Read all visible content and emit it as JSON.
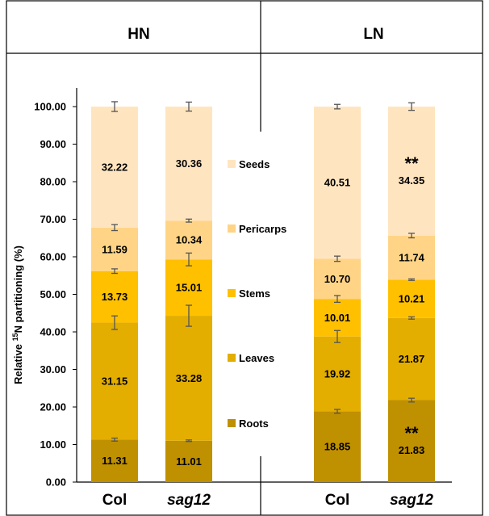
{
  "panels": [
    {
      "title": "HN",
      "categories": [
        "Col",
        "sag12"
      ]
    },
    {
      "title": "LN",
      "categories": [
        "Col",
        "sag12"
      ]
    }
  ],
  "chart_data": {
    "type": "bar",
    "stacked": true,
    "ylabel_parts": [
      "Relative ",
      "15",
      "N partitioning (%)"
    ],
    "ylim": [
      0,
      100
    ],
    "yticks": [
      "0.00",
      "10.00",
      "20.00",
      "30.00",
      "40.00",
      "50.00",
      "60.00",
      "70.00",
      "80.00",
      "90.00",
      "100.00"
    ],
    "grid": false,
    "legend_position": "center, between panels",
    "categories": [
      "HN Col",
      "HN sag12",
      "LN Col",
      "LN sag12"
    ],
    "category_labels": [
      "Col",
      "sag12",
      "Col",
      "sag12"
    ],
    "series": [
      {
        "name": "Roots",
        "color": "#BF9000",
        "values": [
          11.31,
          11.01,
          18.85,
          21.83
        ],
        "labels": [
          "11.31",
          "11.01",
          "18.85",
          "21.83"
        ],
        "errors": [
          0.4,
          0.2,
          0.5,
          0.5
        ]
      },
      {
        "name": "Leaves",
        "color": "#E3AE00",
        "values": [
          31.15,
          33.28,
          19.92,
          21.87
        ],
        "labels": [
          "31.15",
          "33.28",
          "19.92",
          "21.87"
        ],
        "errors": [
          1.8,
          2.8,
          1.6,
          0.3
        ]
      },
      {
        "name": "Stems",
        "color": "#FFC000",
        "values": [
          13.73,
          15.01,
          10.01,
          10.21
        ],
        "labels": [
          "13.73",
          "15.01",
          "10.01",
          "10.21"
        ],
        "errors": [
          0.6,
          1.7,
          0.9,
          0.2
        ]
      },
      {
        "name": "Pericarps",
        "color": "#FFD486",
        "values": [
          11.59,
          10.34,
          10.7,
          11.74
        ],
        "labels": [
          "11.59",
          "10.34",
          "10.70",
          "11.74"
        ],
        "errors": [
          0.8,
          0.4,
          0.7,
          0.6
        ]
      },
      {
        "name": "Seeds",
        "color": "#FFE5BF",
        "values": [
          32.22,
          30.36,
          40.51,
          34.35
        ],
        "labels": [
          "32.22",
          "30.36",
          "40.51",
          "34.35"
        ],
        "errors": [
          1.3,
          1.2,
          0.6,
          1.0
        ]
      }
    ],
    "significance": [
      {
        "category_index": 3,
        "series": "Seeds",
        "text": "**"
      },
      {
        "category_index": 3,
        "series": "Roots",
        "text": "**"
      }
    ]
  }
}
